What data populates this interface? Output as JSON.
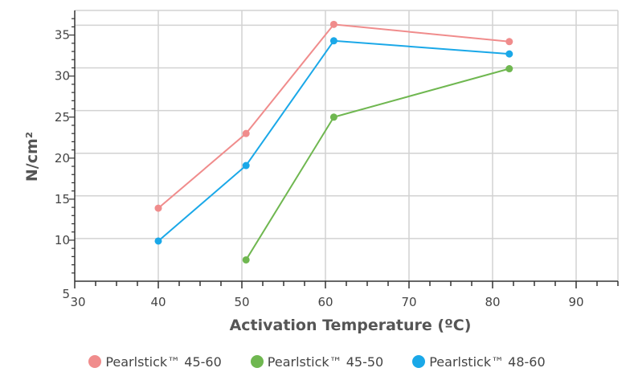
{
  "chart_data": {
    "type": "line",
    "title": "",
    "xlabel": "Activation Temperature (ºC)",
    "ylabel": "N/cm²",
    "xlim": [
      30,
      95
    ],
    "ylim": [
      5,
      38
    ],
    "xticks": [
      "30",
      "40",
      "50",
      "60",
      "70",
      "80",
      "90"
    ],
    "yticks": [
      "5",
      "10",
      "15",
      "20",
      "25",
      "30",
      "35"
    ],
    "grid": true,
    "legend_position": "bottom",
    "series": [
      {
        "name": "Pearlstick™ 45-60",
        "color": "#f08c8c",
        "points": [
          [
            40,
            13.9
          ],
          [
            50.5,
            23
          ],
          [
            61,
            36.3
          ],
          [
            82,
            34.2
          ]
        ]
      },
      {
        "name": "Pearlstick™ 45-50",
        "color": "#6fb750",
        "points": [
          [
            50.5,
            7.6
          ],
          [
            61,
            25
          ],
          [
            82,
            30.9
          ]
        ]
      },
      {
        "name": "Pearlstick™ 48-60",
        "color": "#1aa8e8",
        "points": [
          [
            40,
            9.9
          ],
          [
            50.5,
            19.1
          ],
          [
            61,
            34.3
          ],
          [
            82,
            32.7
          ]
        ]
      }
    ]
  }
}
